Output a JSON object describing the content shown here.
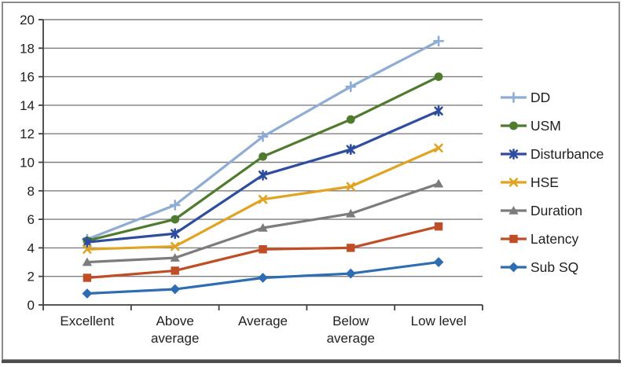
{
  "figure": {
    "background": "#ffffff",
    "border_color": "#8c8c8c",
    "border_bottom_color": "#4d4d4d"
  },
  "chart_data": {
    "type": "line",
    "title": "",
    "xlabel": "",
    "ylabel": "",
    "categories": [
      "Excellent",
      "Above average",
      "Average",
      "Below average",
      "Low level"
    ],
    "category_label_lines": [
      [
        "Excellent"
      ],
      [
        "Above",
        "average"
      ],
      [
        "Average"
      ],
      [
        "Below",
        "average"
      ],
      [
        "Low level"
      ]
    ],
    "series": [
      {
        "name": "DD",
        "color": "#8fadd4",
        "marker": "plus",
        "values": [
          4.6,
          7.0,
          11.8,
          15.3,
          18.5
        ]
      },
      {
        "name": "USM",
        "color": "#4e7b2d",
        "marker": "circle",
        "values": [
          4.5,
          6.0,
          10.4,
          13.0,
          16.0
        ]
      },
      {
        "name": "Disturbance",
        "color": "#2e4d9e",
        "marker": "asterisk",
        "values": [
          4.4,
          5.0,
          9.1,
          10.9,
          13.6
        ]
      },
      {
        "name": "HSE",
        "color": "#e0a422",
        "marker": "x",
        "values": [
          3.9,
          4.1,
          7.4,
          8.3,
          11.0
        ]
      },
      {
        "name": "Duration",
        "color": "#7c7c7c",
        "marker": "triangle",
        "values": [
          3.0,
          3.3,
          5.4,
          6.4,
          8.5
        ]
      },
      {
        "name": "Latency",
        "color": "#bf4d26",
        "marker": "square",
        "values": [
          1.9,
          2.4,
          3.9,
          4.0,
          5.5
        ]
      },
      {
        "name": "Sub SQ",
        "color": "#2f6db2",
        "marker": "diamond",
        "values": [
          0.8,
          1.1,
          1.9,
          2.2,
          3.0
        ]
      }
    ],
    "ylim": [
      0,
      20
    ],
    "ytick_step": 2,
    "yticks": [
      0,
      2,
      4,
      6,
      8,
      10,
      12,
      14,
      16,
      18,
      20
    ],
    "grid": true,
    "legend_position": "right",
    "colors": {
      "grid": "#7f7f7f",
      "axis": "#404040",
      "text": "#1f1f1f"
    }
  }
}
